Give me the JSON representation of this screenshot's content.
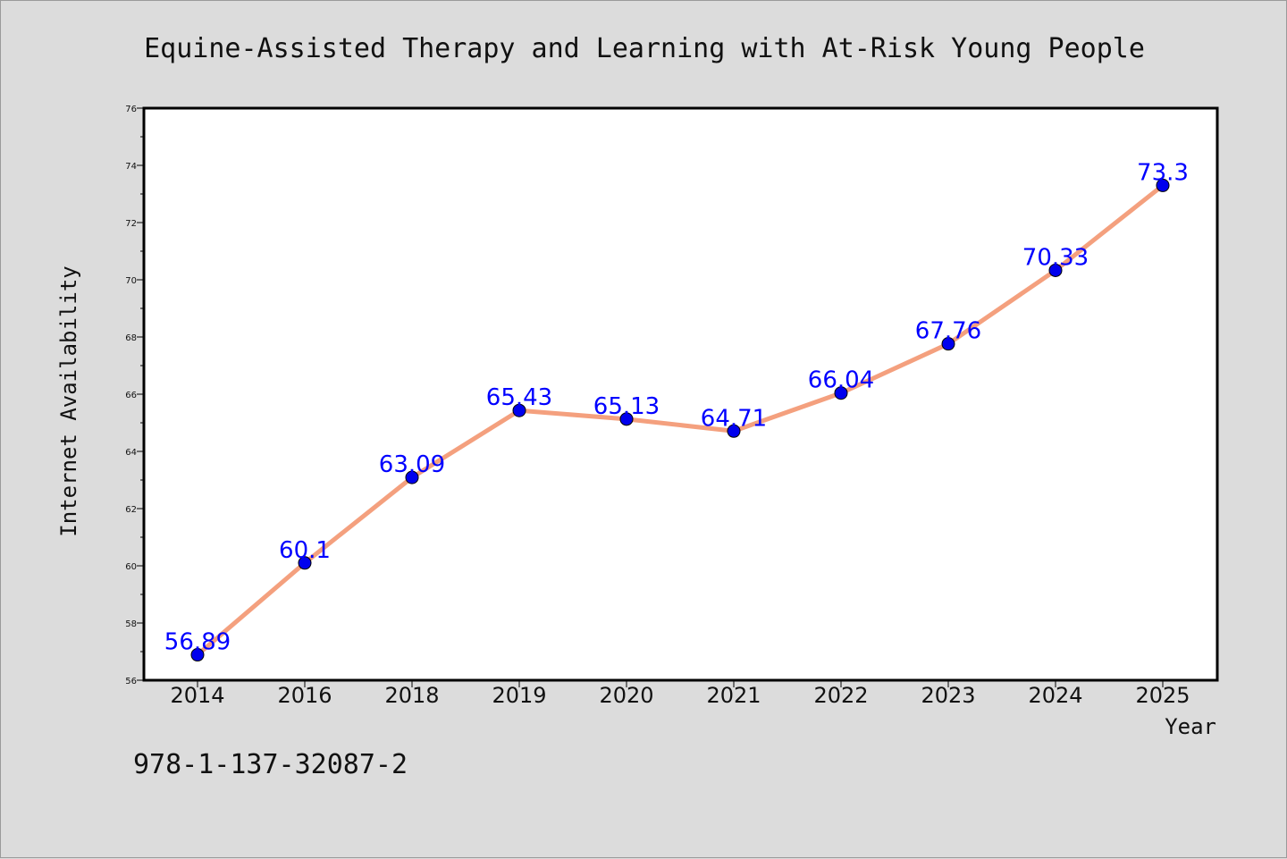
{
  "chart_data": {
    "type": "line",
    "title": "Equine-Assisted Therapy and Learning with At-Risk Young People",
    "xlabel": "Year",
    "ylabel": "Internet Availability",
    "categories": [
      "2014",
      "2016",
      "2018",
      "2019",
      "2020",
      "2021",
      "2022",
      "2023",
      "2024",
      "2025"
    ],
    "values": [
      56.89,
      60.1,
      63.09,
      65.43,
      65.13,
      64.71,
      66.04,
      67.76,
      70.33,
      73.3
    ],
    "data_labels": [
      "56.89",
      "60.1",
      "63.09",
      "65.43",
      "65.13",
      "64.71",
      "66.04",
      "67.76",
      "70.33",
      "73.3"
    ],
    "ylim": [
      56,
      76
    ],
    "yticks": [
      "56",
      "58",
      "60",
      "62",
      "64",
      "66",
      "68",
      "70",
      "72",
      "74",
      "76"
    ],
    "grid": false,
    "line_color": "#f4a07e",
    "marker_color": "#0000ee",
    "label_color": "#0000ff",
    "background": "#dcdcdc",
    "plot_background": "#ffffff"
  },
  "footnote": "978-1-137-32087-2"
}
